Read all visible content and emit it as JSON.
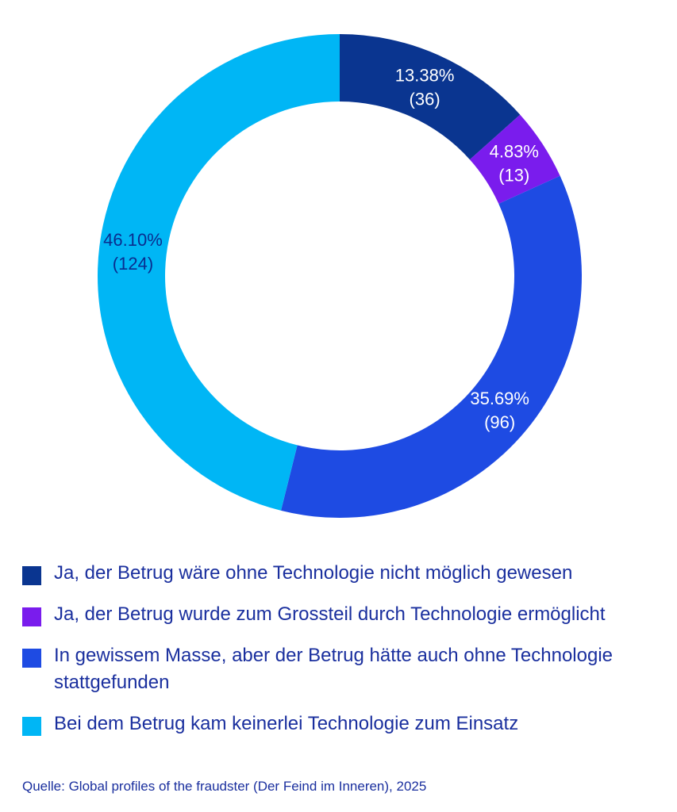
{
  "chart_data": {
    "type": "pie",
    "donut": true,
    "start_angle_deg": 0,
    "direction": "clockwise",
    "slices": [
      {
        "name": "Ja, der Betrug wäre ohne Technologie nicht möglich gewesen",
        "percent": 13.38,
        "count": 36,
        "percent_label": "13.38%",
        "count_label": "(36)",
        "color": "#0a3590",
        "label_color": "#ffffff"
      },
      {
        "name": "Ja, der Betrug wurde zum Grossteil durch Technologie ermöglicht",
        "percent": 4.83,
        "count": 13,
        "percent_label": "4.83%",
        "count_label": "(13)",
        "color": "#7a1ced",
        "label_color": "#ffffff"
      },
      {
        "name": "In gewissem Masse, aber der Betrug hätte auch ohne Technologie stattgefunden",
        "percent": 35.69,
        "count": 96,
        "percent_label": "35.69%",
        "count_label": "(96)",
        "color": "#1e4be3",
        "label_color": "#ffffff"
      },
      {
        "name": "Bei dem Betrug kam keinerlei Technologie zum Einsatz",
        "percent": 46.1,
        "count": 124,
        "percent_label": "46.10%",
        "count_label": "(124)",
        "color": "#00b6f5",
        "label_color": "#0a2d8f"
      }
    ],
    "legend": {
      "placement": "bottom",
      "items": [
        {
          "label": "Ja, der Betrug wäre ohne Technologie nicht möglich gewesen",
          "color": "#0a3590"
        },
        {
          "label": "Ja, der Betrug wurde zum Grossteil durch Technologie ermöglicht",
          "color": "#7a1ced"
        },
        {
          "label": "In gewissem Masse, aber der Betrug hätte auch ohne Technologie stattgefunden",
          "color": "#1e4be3"
        },
        {
          "label": "Bei dem Betrug kam keinerlei Technologie zum Einsatz",
          "color": "#00b6f5"
        }
      ]
    }
  },
  "source": "Quelle: Global profiles of the fraudster (Der Feind im Inneren), 2025"
}
